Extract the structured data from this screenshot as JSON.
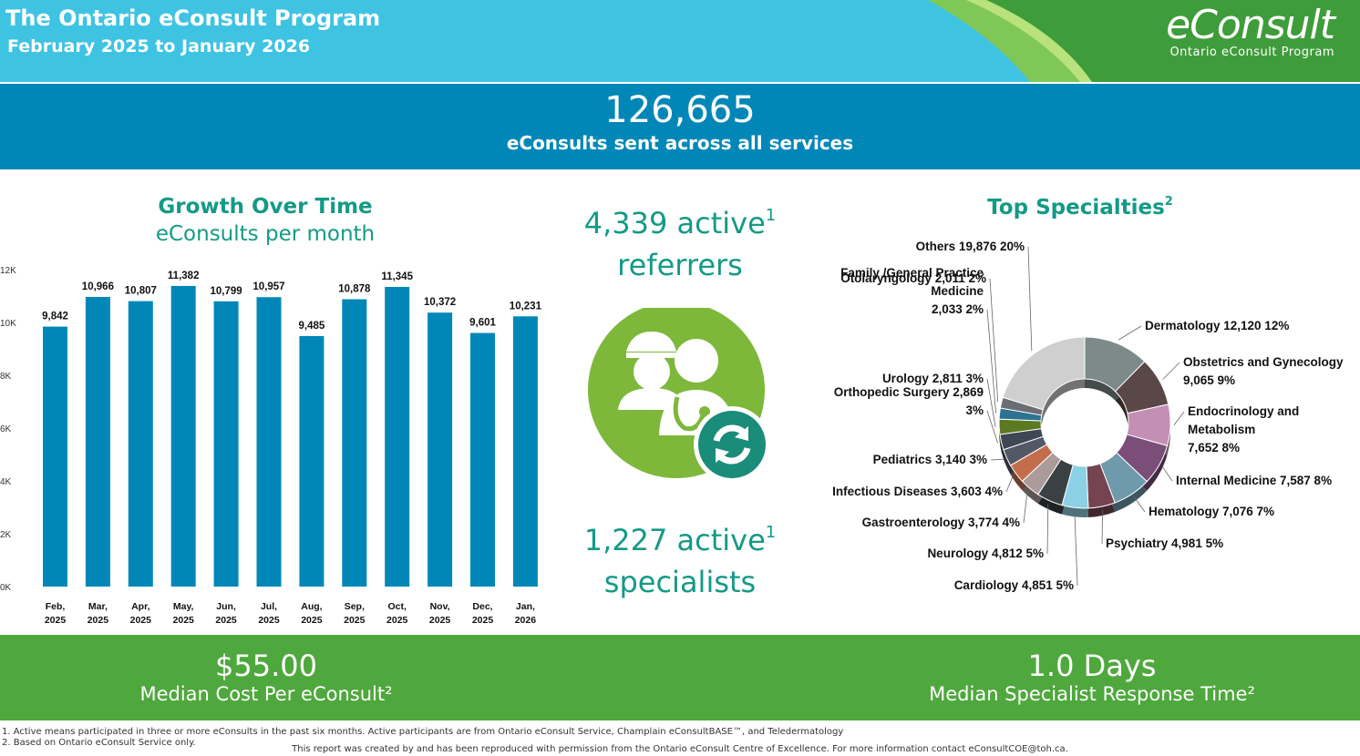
{
  "header": {
    "title": "The Ontario eConsult Program",
    "subtitle": "February 2025 to January 2026",
    "logo_text": "eConsult",
    "logo_subtext": "Ontario eConsult Program"
  },
  "totals": {
    "value": "126,665",
    "label": "eConsults sent across all services"
  },
  "growth": {
    "title": "Growth Over Time",
    "subtitle": "eConsults per month"
  },
  "active": {
    "referrers_count": "4,339 active",
    "referrers_sup": "1",
    "referrers_label": "referrers",
    "specialists_count": "1,227 active",
    "specialists_sup": "1",
    "specialists_label": "specialists"
  },
  "specialties": {
    "title": "Top Specialties",
    "title_sup": "2"
  },
  "kpis": {
    "cost_value": "$55.00",
    "cost_label": "Median Cost Per eConsult²",
    "time_value": "1.0  Days",
    "time_label": "Median Specialist Response Time²"
  },
  "footnotes": {
    "note1": "1. Active means participated in three or more eConsults in the past six months. Active participants are from Ontario eConsult Service, Champlain eConsultBASE™, and Teledermatology",
    "note2": "2. Based on Ontario eConsult Service only.",
    "credit": "This report was created by and has been reproduced with permission from the Ontario eConsult Centre of Excellence. For more information contact eConsultCOE@toh.ca."
  },
  "colors": {
    "header_bg": "#3fc3e3",
    "band_blue": "#0087b8",
    "bar": "#0087b8",
    "teal_text": "#149a86",
    "band_green": "#4fa83d",
    "icon_green": "#7db83a",
    "icon_teal": "#1a8c7a"
  },
  "icons": [
    "people-refresh-icon"
  ],
  "chart_data": [
    {
      "type": "bar",
      "title": "Growth Over Time",
      "subtitle": "eConsults per month",
      "categories": [
        "Feb, 2025",
        "Mar, 2025",
        "Apr, 2025",
        "May, 2025",
        "Jun, 2025",
        "Jul, 2025",
        "Aug, 2025",
        "Sep, 2025",
        "Oct, 2025",
        "Nov, 2025",
        "Dec, 2025",
        "Jan, 2026"
      ],
      "values": [
        9842,
        10966,
        10807,
        11382,
        10799,
        10957,
        9485,
        10878,
        11345,
        10372,
        9601,
        10231
      ],
      "value_labels": [
        "9,842",
        "10,966",
        "10,807",
        "11,382",
        "10,799",
        "10,957",
        "9,485",
        "10,878",
        "11,345",
        "10,372",
        "9,601",
        "10,231"
      ],
      "yticks": [
        "0K",
        "2K",
        "4K",
        "6K",
        "8K",
        "10K",
        "12K"
      ],
      "ylim": [
        0,
        12000
      ],
      "grid": false
    },
    {
      "type": "pie",
      "style": "donut",
      "title": "Top Specialties",
      "slices": [
        {
          "label": "Dermatology 12,120 12%",
          "value": 12120,
          "color": "#7d8a8a"
        },
        {
          "label": "Obstetrics and Gynecology 9,065 9%",
          "value": 9065,
          "color": "#5a4747"
        },
        {
          "label": "Endocrinology and Metabolism 7,652 8%",
          "value": 7652,
          "color": "#c48fb4"
        },
        {
          "label": "Internal Medicine 7,587 8%",
          "value": 7587,
          "color": "#7a4e78"
        },
        {
          "label": "Hematology 7,076 7%",
          "value": 7076,
          "color": "#6f9aab"
        },
        {
          "label": "Psychiatry 4,981 5%",
          "value": 4981,
          "color": "#744452"
        },
        {
          "label": "Cardiology 4,851 5%",
          "value": 4851,
          "color": "#8cd1e5"
        },
        {
          "label": "Neurology 4,812 5%",
          "value": 4812,
          "color": "#3b4044"
        },
        {
          "label": "Gastroenterology 3,774 4%",
          "value": 3774,
          "color": "#ab9b9b"
        },
        {
          "label": "Infectious Diseases 3,603 4%",
          "value": 3603,
          "color": "#c26e4c"
        },
        {
          "label": "Pediatrics 3,140 3%",
          "value": 3140,
          "color": "#525866"
        },
        {
          "label": "Orthopedic Surgery 2,869 3%",
          "value": 2869,
          "color": "#3e4754"
        },
        {
          "label": "Urology 2,811 3%",
          "value": 2811,
          "color": "#5b7a1f"
        },
        {
          "label": "Family /General Practice Medicine 2,033 2%",
          "value": 2033,
          "color": "#2b7391"
        },
        {
          "label": "Otolaryngology 2,011 2%",
          "value": 2011,
          "color": "#6a6e74"
        },
        {
          "label": "Others 19,876 20%",
          "value": 19876,
          "color": "#cfcfcf"
        }
      ]
    }
  ]
}
